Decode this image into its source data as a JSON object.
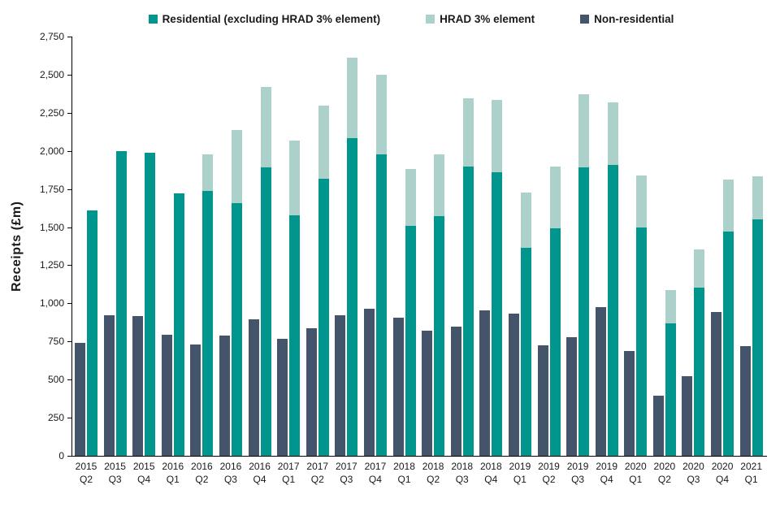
{
  "chart_data": {
    "type": "bar",
    "title": "",
    "ylabel": "Receipts (£m)",
    "xlabel": "",
    "ylim": [
      0,
      2750
    ],
    "ytick_step": 250,
    "yticks": [
      0,
      250,
      500,
      750,
      1000,
      1250,
      1500,
      1750,
      2000,
      2250,
      2500,
      2750
    ],
    "grid": false,
    "legend_position": "top",
    "bar_grouping": "Stacked Residential+HRAD bar beside separate Non-residential bar; Non-residential drawn on the left of each pair",
    "categories": [
      "2015 Q2",
      "2015 Q3",
      "2015 Q4",
      "2016 Q1",
      "2016 Q2",
      "2016 Q3",
      "2016 Q4",
      "2017 Q1",
      "2017 Q2",
      "2017 Q3",
      "2017 Q4",
      "2018 Q1",
      "2018 Q2",
      "2018 Q3",
      "2018 Q4",
      "2019 Q1",
      "2019 Q2",
      "2019 Q3",
      "2019 Q4",
      "2020 Q1",
      "2020 Q2",
      "2020 Q3",
      "2020 Q4",
      "2021 Q1"
    ],
    "series": [
      {
        "name": "Residential (excluding HRAD 3% element)",
        "role": "stack-base",
        "color": "#00958d",
        "values": [
          1610,
          2000,
          1990,
          1720,
          1740,
          1655,
          1890,
          1580,
          1815,
          2085,
          1975,
          1510,
          1570,
          1900,
          1860,
          1365,
          1490,
          1890,
          1910,
          1500,
          870,
          1105,
          1470,
          1550
        ]
      },
      {
        "name": "HRAD 3% element",
        "role": "stack-top",
        "color": "#acd1ca",
        "values": [
          0,
          0,
          0,
          0,
          235,
          480,
          530,
          490,
          480,
          525,
          525,
          370,
          405,
          445,
          475,
          360,
          410,
          480,
          410,
          340,
          220,
          250,
          340,
          285
        ]
      },
      {
        "name": "Non-residential",
        "role": "separate-bar",
        "color": "#44546a",
        "values": [
          740,
          920,
          915,
          795,
          730,
          790,
          895,
          765,
          835,
          920,
          965,
          905,
          820,
          850,
          955,
          935,
          725,
          780,
          975,
          690,
          395,
          525,
          945,
          720
        ]
      }
    ]
  }
}
